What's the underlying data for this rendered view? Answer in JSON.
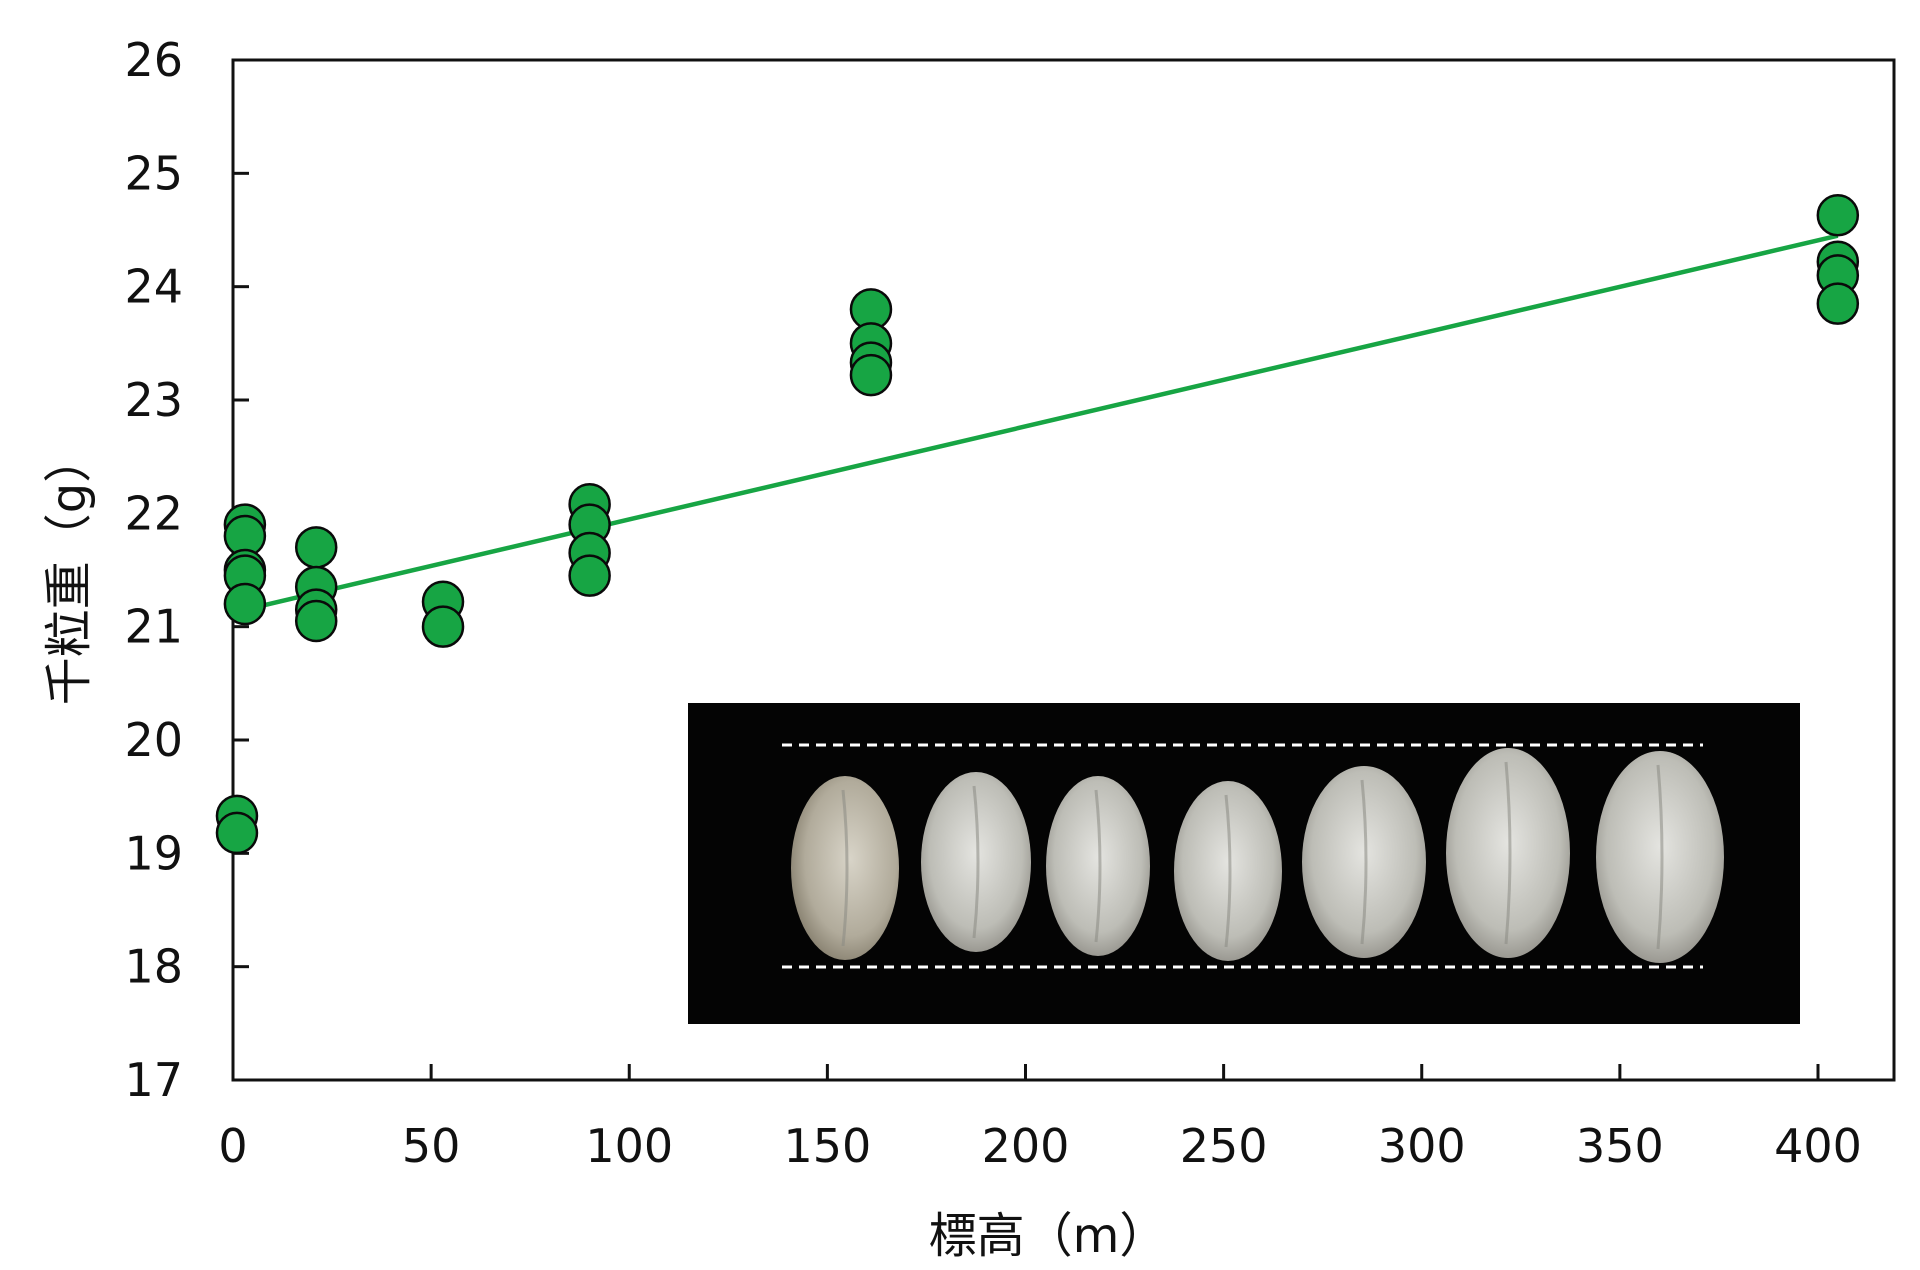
{
  "chart_data": {
    "type": "scatter",
    "title": "",
    "xlabel": "標高（m）",
    "ylabel": "千粒重（g）",
    "xlim": [
      0,
      420
    ],
    "ylim": [
      17,
      26
    ],
    "xticks": [
      "0",
      "50",
      "100",
      "150",
      "200",
      "250",
      "300",
      "350",
      "400"
    ],
    "yticks": [
      "17",
      "18",
      "19",
      "20",
      "21",
      "22",
      "23",
      "24",
      "25",
      "26"
    ],
    "grid": false,
    "legend": "none",
    "series": [
      {
        "points": [
          {
            "x": 3,
            "y": 21.9
          },
          {
            "x": 3,
            "y": 21.8
          },
          {
            "x": 3,
            "y": 21.5
          },
          {
            "x": 3,
            "y": 21.45
          },
          {
            "x": 3,
            "y": 21.2
          },
          {
            "x": 1,
            "y": 19.33
          },
          {
            "x": 1,
            "y": 19.18
          },
          {
            "x": 21,
            "y": 21.7
          },
          {
            "x": 21,
            "y": 21.35
          },
          {
            "x": 21,
            "y": 21.15
          },
          {
            "x": 21,
            "y": 21.05
          },
          {
            "x": 53,
            "y": 21.22
          },
          {
            "x": 53,
            "y": 21.0
          },
          {
            "x": 90,
            "y": 22.08
          },
          {
            "x": 90,
            "y": 21.9
          },
          {
            "x": 90,
            "y": 21.65
          },
          {
            "x": 90,
            "y": 21.45
          },
          {
            "x": 161,
            "y": 23.8
          },
          {
            "x": 161,
            "y": 23.5
          },
          {
            "x": 161,
            "y": 23.33
          },
          {
            "x": 161,
            "y": 23.22
          },
          {
            "x": 405,
            "y": 24.63
          },
          {
            "x": 405,
            "y": 24.22
          },
          {
            "x": 405,
            "y": 24.1
          },
          {
            "x": 405,
            "y": 23.85
          }
        ],
        "color": "#17a544"
      }
    ],
    "trendline": {
      "x": [
        3,
        405
      ],
      "y": [
        21.15,
        24.45
      ],
      "color": "#17a544"
    },
    "inset": {
      "type": "photo",
      "content": "rice-grains",
      "count": 7,
      "placement": "bottom-right"
    }
  }
}
